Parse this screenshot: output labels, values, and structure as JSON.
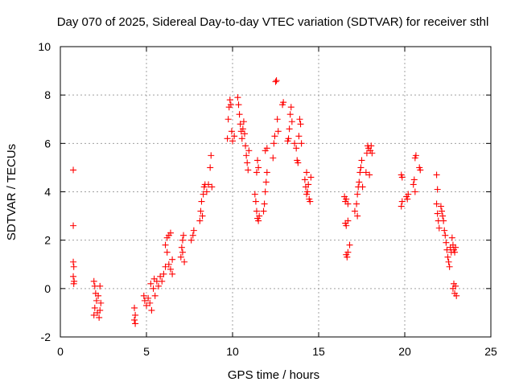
{
  "chart_data": {
    "type": "scatter",
    "title": "Day 070 of 2025, Sidereal Day-to-day VTEC variation (SDTVAR) for receiver sthl",
    "xlabel": "GPS time / hours",
    "ylabel": "SDTVAR / TECUs",
    "xlim": [
      0,
      25
    ],
    "ylim": [
      -2,
      10
    ],
    "xticks": [
      "0",
      "5",
      "10",
      "15",
      "20",
      "25"
    ],
    "yticks": [
      "-2",
      "0",
      "2",
      "4",
      "6",
      "8",
      "10"
    ],
    "grid": true,
    "marker": "plus",
    "color": "#ff0000",
    "series": [
      {
        "name": "SDTVAR",
        "points": [
          [
            0.75,
            4.9
          ],
          [
            0.75,
            2.6
          ],
          [
            0.75,
            1.1
          ],
          [
            0.78,
            0.9
          ],
          [
            0.75,
            0.5
          ],
          [
            0.8,
            0.3
          ],
          [
            0.78,
            0.2
          ],
          [
            1.95,
            0.3
          ],
          [
            2.0,
            0.1
          ],
          [
            2.05,
            -0.2
          ],
          [
            2.1,
            -0.5
          ],
          [
            2.0,
            -0.8
          ],
          [
            2.15,
            -1.0
          ],
          [
            2.25,
            -1.2
          ],
          [
            2.3,
            -0.9
          ],
          [
            2.2,
            -0.3
          ],
          [
            2.3,
            0.1
          ],
          [
            2.35,
            -0.6
          ],
          [
            1.95,
            -1.1
          ],
          [
            4.3,
            -0.8
          ],
          [
            4.35,
            -1.1
          ],
          [
            4.3,
            -1.3
          ],
          [
            4.35,
            -1.45
          ],
          [
            4.85,
            -0.3
          ],
          [
            4.9,
            -0.5
          ],
          [
            5.0,
            -0.7
          ],
          [
            5.1,
            -0.4
          ],
          [
            5.2,
            -0.6
          ],
          [
            5.3,
            -0.9
          ],
          [
            5.25,
            0.2
          ],
          [
            5.4,
            0.0
          ],
          [
            5.5,
            -0.3
          ],
          [
            5.45,
            0.4
          ],
          [
            5.6,
            0.3
          ],
          [
            5.7,
            0.1
          ],
          [
            5.8,
            0.5
          ],
          [
            5.9,
            0.3
          ],
          [
            6.0,
            0.6
          ],
          [
            6.1,
            0.9
          ],
          [
            6.1,
            1.8
          ],
          [
            6.2,
            2.1
          ],
          [
            6.3,
            2.2
          ],
          [
            6.4,
            2.3
          ],
          [
            6.3,
            1.0
          ],
          [
            6.4,
            0.8
          ],
          [
            6.5,
            0.6
          ],
          [
            6.5,
            1.2
          ],
          [
            6.2,
            1.5
          ],
          [
            7.0,
            1.3
          ],
          [
            7.05,
            1.7
          ],
          [
            7.1,
            2.0
          ],
          [
            7.15,
            2.2
          ],
          [
            7.2,
            1.1
          ],
          [
            7.1,
            1.5
          ],
          [
            7.6,
            2.0
          ],
          [
            7.7,
            2.2
          ],
          [
            7.75,
            2.4
          ],
          [
            8.1,
            2.8
          ],
          [
            8.15,
            3.2
          ],
          [
            8.2,
            3.6
          ],
          [
            8.3,
            3.9
          ],
          [
            8.35,
            4.2
          ],
          [
            8.4,
            4.3
          ],
          [
            8.25,
            3.0
          ],
          [
            8.5,
            4.0
          ],
          [
            8.6,
            4.3
          ],
          [
            8.7,
            5.0
          ],
          [
            8.75,
            5.5
          ],
          [
            8.8,
            4.2
          ],
          [
            9.7,
            6.2
          ],
          [
            9.75,
            7.0
          ],
          [
            9.8,
            7.5
          ],
          [
            9.85,
            7.8
          ],
          [
            9.9,
            7.6
          ],
          [
            9.95,
            6.5
          ],
          [
            10.0,
            6.1
          ],
          [
            10.1,
            6.3
          ],
          [
            10.3,
            7.9
          ],
          [
            10.35,
            7.6
          ],
          [
            10.4,
            7.2
          ],
          [
            10.45,
            6.8
          ],
          [
            10.5,
            6.5
          ],
          [
            10.55,
            6.2
          ],
          [
            10.6,
            6.6
          ],
          [
            10.65,
            6.9
          ],
          [
            10.7,
            6.4
          ],
          [
            10.75,
            5.9
          ],
          [
            10.8,
            5.5
          ],
          [
            10.85,
            5.2
          ],
          [
            10.9,
            4.9
          ],
          [
            10.95,
            5.7
          ],
          [
            11.3,
            3.9
          ],
          [
            11.35,
            3.6
          ],
          [
            11.4,
            3.2
          ],
          [
            11.45,
            2.9
          ],
          [
            11.5,
            2.8
          ],
          [
            11.55,
            3.0
          ],
          [
            11.4,
            4.8
          ],
          [
            11.5,
            5.0
          ],
          [
            11.45,
            5.3
          ],
          [
            11.8,
            3.2
          ],
          [
            11.85,
            3.5
          ],
          [
            11.9,
            4.0
          ],
          [
            11.95,
            4.4
          ],
          [
            12.0,
            4.8
          ],
          [
            11.9,
            5.7
          ],
          [
            12.0,
            5.8
          ],
          [
            12.35,
            5.4
          ],
          [
            12.4,
            6.0
          ],
          [
            12.45,
            6.3
          ],
          [
            12.5,
            8.55
          ],
          [
            12.55,
            8.6
          ],
          [
            12.6,
            7.0
          ],
          [
            12.65,
            6.5
          ],
          [
            12.9,
            7.6
          ],
          [
            12.95,
            7.7
          ],
          [
            13.2,
            6.1
          ],
          [
            13.25,
            6.2
          ],
          [
            13.3,
            6.6
          ],
          [
            13.35,
            7.2
          ],
          [
            13.4,
            7.5
          ],
          [
            13.45,
            6.9
          ],
          [
            13.6,
            6.0
          ],
          [
            13.7,
            5.8
          ],
          [
            13.75,
            5.3
          ],
          [
            13.8,
            5.2
          ],
          [
            13.85,
            6.3
          ],
          [
            13.9,
            7.0
          ],
          [
            14.0,
            6.0
          ],
          [
            13.95,
            6.8
          ],
          [
            14.2,
            4.5
          ],
          [
            14.25,
            4.2
          ],
          [
            14.3,
            3.9
          ],
          [
            14.35,
            4.0
          ],
          [
            14.4,
            4.3
          ],
          [
            14.45,
            3.7
          ],
          [
            14.5,
            3.6
          ],
          [
            14.55,
            4.6
          ],
          [
            14.3,
            4.8
          ],
          [
            16.5,
            3.8
          ],
          [
            16.55,
            3.6
          ],
          [
            16.6,
            3.7
          ],
          [
            16.7,
            3.5
          ],
          [
            16.55,
            2.7
          ],
          [
            16.6,
            2.6
          ],
          [
            16.7,
            2.8
          ],
          [
            16.6,
            1.4
          ],
          [
            16.65,
            1.3
          ],
          [
            16.7,
            1.5
          ],
          [
            16.8,
            1.8
          ],
          [
            17.1,
            3.2
          ],
          [
            17.2,
            3.5
          ],
          [
            17.25,
            3.9
          ],
          [
            17.3,
            4.2
          ],
          [
            17.35,
            4.4
          ],
          [
            17.4,
            4.8
          ],
          [
            17.45,
            5.0
          ],
          [
            17.5,
            5.3
          ],
          [
            17.55,
            4.2
          ],
          [
            17.25,
            3.0
          ],
          [
            17.75,
            4.8
          ],
          [
            17.8,
            5.6
          ],
          [
            17.85,
            5.9
          ],
          [
            17.9,
            5.8
          ],
          [
            18.0,
            5.7
          ],
          [
            18.05,
            5.9
          ],
          [
            17.95,
            4.7
          ],
          [
            18.1,
            5.6
          ],
          [
            19.8,
            4.7
          ],
          [
            19.85,
            4.6
          ],
          [
            19.8,
            3.4
          ],
          [
            19.85,
            3.6
          ],
          [
            20.1,
            3.8
          ],
          [
            20.15,
            3.7
          ],
          [
            20.2,
            3.9
          ],
          [
            20.5,
            4.3
          ],
          [
            20.55,
            4.5
          ],
          [
            20.6,
            5.4
          ],
          [
            20.65,
            5.5
          ],
          [
            20.6,
            4.0
          ],
          [
            20.85,
            5.0
          ],
          [
            20.9,
            4.9
          ],
          [
            21.85,
            4.7
          ],
          [
            21.9,
            4.1
          ],
          [
            21.85,
            3.5
          ],
          [
            21.9,
            3.1
          ],
          [
            21.95,
            2.8
          ],
          [
            22.0,
            2.5
          ],
          [
            22.1,
            3.4
          ],
          [
            22.15,
            3.2
          ],
          [
            22.2,
            3.0
          ],
          [
            22.25,
            2.8
          ],
          [
            22.3,
            2.4
          ],
          [
            22.35,
            2.2
          ],
          [
            22.4,
            1.9
          ],
          [
            22.45,
            1.6
          ],
          [
            22.5,
            1.3
          ],
          [
            22.55,
            1.1
          ],
          [
            22.6,
            0.9
          ],
          [
            22.65,
            1.7
          ],
          [
            22.7,
            1.5
          ],
          [
            22.75,
            2.1
          ],
          [
            22.8,
            1.8
          ],
          [
            22.85,
            1.6
          ],
          [
            22.9,
            1.5
          ],
          [
            22.95,
            1.7
          ],
          [
            22.8,
            0.0
          ],
          [
            22.85,
            0.2
          ],
          [
            22.9,
            -0.2
          ],
          [
            22.95,
            0.1
          ],
          [
            23.0,
            -0.3
          ]
        ]
      }
    ]
  }
}
